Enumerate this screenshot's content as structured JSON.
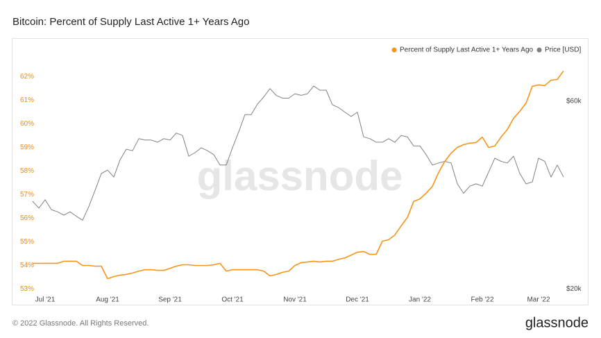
{
  "chart_data": {
    "type": "line",
    "title": "Bitcoin: Percent of Supply Last Active 1+ Years Ago",
    "watermark": "glassnode",
    "categories": [
      null,
      null,
      "Jul '21",
      null,
      null,
      null,
      null,
      null,
      null,
      null,
      null,
      null,
      "Aug '21",
      null,
      null,
      null,
      null,
      null,
      null,
      null,
      null,
      null,
      "Sep '21",
      null,
      null,
      null,
      null,
      null,
      null,
      null,
      null,
      null,
      "Oct '21",
      null,
      null,
      null,
      null,
      null,
      null,
      null,
      null,
      null,
      "Nov '21",
      null,
      null,
      null,
      null,
      null,
      null,
      null,
      null,
      null,
      "Dec '21",
      null,
      null,
      null,
      null,
      null,
      null,
      null,
      null,
      null,
      "Jan '22",
      null,
      null,
      null,
      null,
      null,
      null,
      null,
      null,
      null,
      "Feb '22",
      null,
      null,
      null,
      null,
      null,
      null,
      null,
      null,
      "Mar '22",
      null,
      null,
      null,
      null
    ],
    "series": [
      {
        "name": "Percent of Supply Last Active 1+ Years Ago",
        "color": "#f7931a",
        "axis": "y",
        "values": [
          54.09,
          54.09,
          54.09,
          54.09,
          54.09,
          54.18,
          54.18,
          54.18,
          54.0,
          54.0,
          53.97,
          53.97,
          53.44,
          53.53,
          53.59,
          53.62,
          53.68,
          53.76,
          53.82,
          53.82,
          53.79,
          53.79,
          53.88,
          53.97,
          54.03,
          54.03,
          54.0,
          54.0,
          54.0,
          54.03,
          54.09,
          53.76,
          53.82,
          53.82,
          53.82,
          53.82,
          53.82,
          53.76,
          53.56,
          53.62,
          53.71,
          53.76,
          54.0,
          54.12,
          54.15,
          54.18,
          54.15,
          54.18,
          54.18,
          54.26,
          54.32,
          54.44,
          54.56,
          54.59,
          54.47,
          54.47,
          55.03,
          55.09,
          55.29,
          55.68,
          56.03,
          56.71,
          56.82,
          57.06,
          57.35,
          57.94,
          58.41,
          58.76,
          59.0,
          59.12,
          59.18,
          59.21,
          59.44,
          59.0,
          59.06,
          59.44,
          59.76,
          60.24,
          60.53,
          60.88,
          61.59,
          61.65,
          61.62,
          61.85,
          61.88,
          62.24
        ]
      },
      {
        "name": "Price [USD]",
        "color": "#808080",
        "axis": "y2",
        "values": [
          33400,
          32100,
          33700,
          31800,
          31400,
          30800,
          31400,
          30600,
          29900,
          32400,
          35600,
          39300,
          40100,
          38500,
          42600,
          45300,
          44900,
          48200,
          47800,
          47800,
          47200,
          48200,
          47800,
          49800,
          49100,
          43500,
          44400,
          45700,
          44900,
          43900,
          41300,
          41300,
          45700,
          50200,
          55500,
          55500,
          59000,
          61500,
          64600,
          62100,
          61100,
          61100,
          62700,
          62100,
          62700,
          65600,
          64000,
          64000,
          58800,
          57800,
          56300,
          54900,
          56300,
          48700,
          48200,
          47200,
          47200,
          48200,
          47200,
          49100,
          48700,
          46200,
          46200,
          43900,
          41300,
          41800,
          42200,
          41800,
          37000,
          35000,
          36500,
          37000,
          36500,
          39600,
          43000,
          42200,
          41800,
          43500,
          39300,
          37000,
          37400,
          43000,
          42200,
          38500,
          41300,
          38500
        ]
      }
    ],
    "ylim": [
      52.75,
      62.6
    ],
    "yticks": [
      {
        "value": 53,
        "label": "53%"
      },
      {
        "value": 54,
        "label": "54%"
      },
      {
        "value": 55,
        "label": "55%"
      },
      {
        "value": 56,
        "label": "56%"
      },
      {
        "value": 57,
        "label": "57%"
      },
      {
        "value": 58,
        "label": "58%"
      },
      {
        "value": 59,
        "label": "59%"
      },
      {
        "value": 60,
        "label": "60%"
      },
      {
        "value": 61,
        "label": "61%"
      },
      {
        "value": 62,
        "label": "62%"
      }
    ],
    "y2lim": [
      19300,
      75300
    ],
    "y2scale": "log",
    "y2ticks": [
      {
        "value": 20000,
        "label": "$20k"
      },
      {
        "value": 60000,
        "label": "$60k"
      }
    ],
    "legend": "top-right",
    "grid": false
  },
  "footer": "© 2022 Glassnode. All Rights Reserved.",
  "logo": "glassnode"
}
